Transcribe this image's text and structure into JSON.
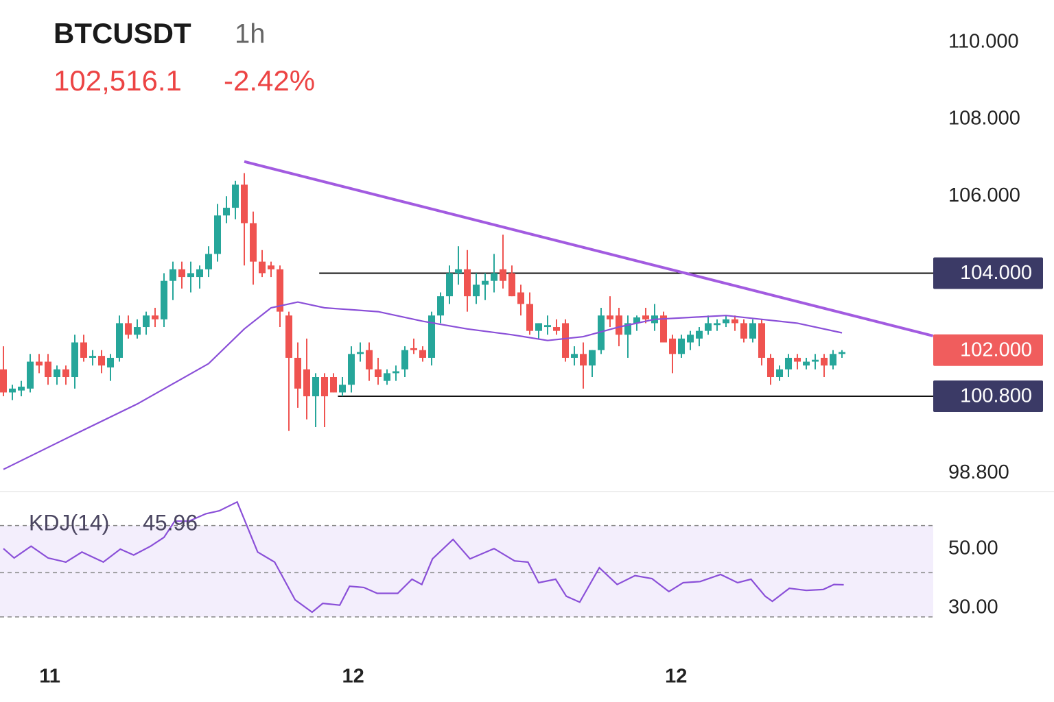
{
  "header": {
    "symbol": "BTCUSDT",
    "interval": "1h",
    "price": "102,516.1",
    "change": "-2.42%"
  },
  "chart_data": [
    {
      "type": "candlestick",
      "colors": {
        "up": "#26a69a",
        "down": "#ef5350"
      },
      "xlim": [
        -0.385,
        104.23
      ],
      "ylim": [
        98.36,
        111.1
      ],
      "yticks": [
        {
          "value": 110,
          "label": "110.000"
        },
        {
          "value": 108,
          "label": "108.000"
        },
        {
          "value": 106,
          "label": "106.000"
        },
        {
          "value": 98.8,
          "label": "98.800"
        }
      ],
      "candles": [
        [
          101.5,
          102.1,
          100.8,
          100.9
        ],
        [
          100.9,
          101.1,
          100.7,
          101.0
        ],
        [
          100.95,
          101.2,
          100.8,
          101.05
        ],
        [
          101.0,
          101.9,
          100.9,
          101.7
        ],
        [
          101.7,
          101.9,
          101.4,
          101.6
        ],
        [
          101.7,
          101.9,
          101.1,
          101.3
        ],
        [
          101.3,
          101.6,
          101.1,
          101.5
        ],
        [
          101.5,
          101.6,
          101.1,
          101.3
        ],
        [
          101.3,
          102.4,
          101.0,
          102.2
        ],
        [
          102.2,
          102.4,
          101.7,
          101.8
        ],
        [
          101.8,
          102.0,
          101.6,
          101.85
        ],
        [
          101.85,
          102.0,
          101.4,
          101.6
        ],
        [
          101.55,
          101.9,
          101.2,
          101.8
        ],
        [
          101.8,
          102.9,
          101.7,
          102.7
        ],
        [
          102.7,
          102.9,
          102.3,
          102.4
        ],
        [
          102.4,
          102.8,
          102.3,
          102.6
        ],
        [
          102.6,
          103.0,
          102.4,
          102.9
        ],
        [
          102.9,
          103.1,
          102.6,
          102.8
        ],
        [
          102.8,
          104.0,
          102.6,
          103.8
        ],
        [
          103.8,
          104.3,
          103.3,
          104.1
        ],
        [
          104.1,
          104.3,
          103.6,
          103.9
        ],
        [
          103.9,
          104.3,
          103.5,
          104.0
        ],
        [
          103.9,
          104.2,
          103.6,
          104.1
        ],
        [
          104.1,
          104.7,
          103.9,
          104.5
        ],
        [
          104.5,
          105.8,
          104.3,
          105.5
        ],
        [
          105.5,
          106.0,
          105.3,
          105.7
        ],
        [
          105.7,
          106.4,
          105.4,
          106.3
        ],
        [
          106.3,
          106.6,
          104.2,
          105.3
        ],
        [
          105.3,
          105.6,
          103.7,
          104.3
        ],
        [
          104.3,
          104.6,
          103.9,
          104.0
        ],
        [
          104.2,
          104.3,
          103.9,
          104.1
        ],
        [
          104.1,
          104.2,
          102.6,
          103.0
        ],
        [
          102.9,
          103.0,
          99.9,
          101.8
        ],
        [
          101.8,
          102.2,
          100.5,
          101.0
        ],
        [
          101.5,
          102.3,
          100.2,
          100.8
        ],
        [
          100.8,
          101.4,
          100.0,
          101.3
        ],
        [
          101.3,
          101.4,
          100.0,
          100.8
        ],
        [
          101.3,
          101.4,
          100.9,
          100.9
        ],
        [
          100.9,
          101.3,
          100.8,
          101.1
        ],
        [
          101.1,
          102.1,
          100.9,
          101.9
        ],
        [
          101.9,
          102.2,
          101.7,
          101.95
        ],
        [
          102.0,
          102.2,
          101.2,
          101.5
        ],
        [
          101.5,
          101.8,
          101.1,
          101.3
        ],
        [
          101.2,
          101.5,
          101.1,
          101.4
        ],
        [
          101.4,
          101.6,
          101.2,
          101.45
        ],
        [
          101.5,
          102.1,
          101.3,
          102.0
        ],
        [
          102.05,
          102.3,
          101.9,
          102.0
        ],
        [
          102.0,
          102.1,
          101.7,
          101.8
        ],
        [
          101.8,
          103.0,
          101.6,
          102.9
        ],
        [
          102.9,
          103.5,
          102.7,
          103.4
        ],
        [
          103.4,
          104.2,
          103.2,
          104.0
        ],
        [
          104.0,
          104.7,
          103.7,
          104.1
        ],
        [
          104.1,
          104.6,
          103.0,
          103.4
        ],
        [
          103.4,
          104.0,
          103.2,
          103.7
        ],
        [
          103.7,
          104.0,
          103.3,
          103.8
        ],
        [
          103.8,
          104.5,
          103.5,
          104.0
        ],
        [
          104.1,
          105.0,
          103.6,
          103.8
        ],
        [
          104.0,
          104.2,
          103.4,
          103.4
        ],
        [
          103.5,
          103.7,
          102.9,
          103.2
        ],
        [
          103.2,
          103.5,
          102.4,
          102.5
        ],
        [
          102.5,
          102.7,
          102.3,
          102.7
        ],
        [
          102.6,
          102.9,
          102.4,
          102.65
        ],
        [
          102.6,
          102.8,
          102.4,
          102.5
        ],
        [
          102.7,
          102.8,
          101.7,
          101.8
        ],
        [
          101.8,
          102.1,
          101.6,
          101.9
        ],
        [
          101.9,
          102.2,
          101.0,
          101.6
        ],
        [
          101.6,
          102.0,
          101.3,
          102.0
        ],
        [
          102.0,
          103.1,
          101.9,
          102.9
        ],
        [
          102.9,
          103.4,
          102.6,
          102.8
        ],
        [
          102.9,
          103.1,
          102.1,
          102.4
        ],
        [
          102.4,
          102.9,
          101.8,
          102.7
        ],
        [
          102.7,
          102.9,
          102.5,
          102.85
        ],
        [
          102.9,
          103.1,
          102.7,
          102.8
        ],
        [
          102.7,
          103.2,
          102.5,
          102.9
        ],
        [
          102.9,
          103.0,
          102.2,
          102.2
        ],
        [
          102.3,
          102.4,
          101.4,
          101.9
        ],
        [
          101.9,
          102.4,
          101.8,
          102.3
        ],
        [
          102.2,
          102.5,
          102.0,
          102.4
        ],
        [
          102.3,
          102.6,
          102.1,
          102.5
        ],
        [
          102.5,
          102.9,
          102.4,
          102.7
        ],
        [
          102.65,
          102.8,
          102.5,
          102.7
        ],
        [
          102.7,
          102.9,
          102.6,
          102.8
        ],
        [
          102.8,
          102.9,
          102.5,
          102.7
        ],
        [
          102.7,
          102.8,
          102.2,
          102.3
        ],
        [
          102.3,
          102.8,
          102.2,
          102.7
        ],
        [
          102.7,
          102.8,
          101.6,
          101.8
        ],
        [
          101.8,
          101.9,
          101.1,
          101.3
        ],
        [
          101.3,
          101.6,
          101.2,
          101.5
        ],
        [
          101.5,
          101.9,
          101.3,
          101.8
        ],
        [
          101.8,
          101.9,
          101.5,
          101.7
        ],
        [
          101.6,
          101.8,
          101.5,
          101.7
        ],
        [
          101.7,
          101.9,
          101.5,
          101.75
        ],
        [
          101.8,
          101.9,
          101.3,
          101.6
        ],
        [
          101.6,
          102.0,
          101.5,
          101.9
        ],
        [
          101.9,
          102.0,
          101.8,
          101.95
        ]
      ],
      "ma": {
        "color": "#8a4fd8",
        "x": [
          0,
          7,
          15,
          23,
          27,
          30,
          33,
          36,
          42,
          47,
          52,
          57,
          61,
          65,
          69,
          73,
          77,
          81,
          85,
          89,
          94
        ],
        "values": [
          98.9,
          99.7,
          100.6,
          101.65,
          102.55,
          103.1,
          103.25,
          103.1,
          103.0,
          102.75,
          102.55,
          102.4,
          102.25,
          102.35,
          102.6,
          102.8,
          102.85,
          102.9,
          102.8,
          102.7,
          102.45
        ]
      },
      "trendline": {
        "color": "#a25be0",
        "x": [
          27,
          104.2
        ],
        "values": [
          106.9,
          102.37
        ]
      },
      "levels": [
        {
          "value": 104,
          "label": "104.000",
          "color": "#3b3a66",
          "from": 35.4
        },
        {
          "value": 102,
          "label": "102.000",
          "color": "#f05d5d"
        },
        {
          "value": 100.8,
          "label": "100.800",
          "color": "#3b3a66",
          "from": 37.5
        }
      ]
    },
    {
      "type": "line",
      "title": "KDJ(14)",
      "indicator_value": "45.96",
      "color": "#8a4fd8",
      "xlim": [
        -0.385,
        104.23
      ],
      "ylim": [
        22.33,
        68.84
      ],
      "yticks": [
        {
          "value": 50,
          "label": "50.00"
        },
        {
          "value": 30,
          "label": "30.00"
        }
      ],
      "bands": [
        58,
        42,
        27
      ],
      "xticks": [
        {
          "value": 5.2,
          "label": "11"
        },
        {
          "value": 39.2,
          "label": "12"
        },
        {
          "value": 75.4,
          "label": "12"
        }
      ],
      "x": [
        0,
        1.2,
        3.1,
        5,
        7,
        8.8,
        11.2,
        13.1,
        14.6,
        16.5,
        18,
        19.2,
        20.8,
        22.7,
        24.2,
        26.2,
        28.5,
        30.4,
        32.7,
        34.6,
        35.8,
        37.7,
        38.8,
        40.4,
        41.9,
        44.2,
        45.8,
        46.9,
        48.1,
        50.4,
        52.3,
        55,
        57.3,
        58.8,
        60,
        61.9,
        63.1,
        64.6,
        66.8,
        68.8,
        70.8,
        72.7,
        74.6,
        76.2,
        78.1,
        80.4,
        82.3,
        83.8,
        85.4,
        86.2,
        88.1,
        90,
        91.9,
        93.1,
        94.2
      ],
      "values": [
        50.2,
        47,
        51,
        47,
        45.6,
        49,
        45.6,
        50,
        48,
        51,
        54,
        59.5,
        59.5,
        62,
        63,
        66,
        49,
        45.6,
        32.8,
        28.6,
        31.6,
        31,
        37.4,
        37,
        35,
        35,
        39.8,
        38,
        46.7,
        53.3,
        46.7,
        50.2,
        46,
        45.6,
        38.6,
        39.8,
        34,
        32,
        43.7,
        38,
        41,
        40,
        35.6,
        38.6,
        39,
        41.4,
        38.6,
        39.8,
        34,
        32.3,
        36.7,
        36,
        36.3,
        38,
        37.9
      ]
    }
  ]
}
